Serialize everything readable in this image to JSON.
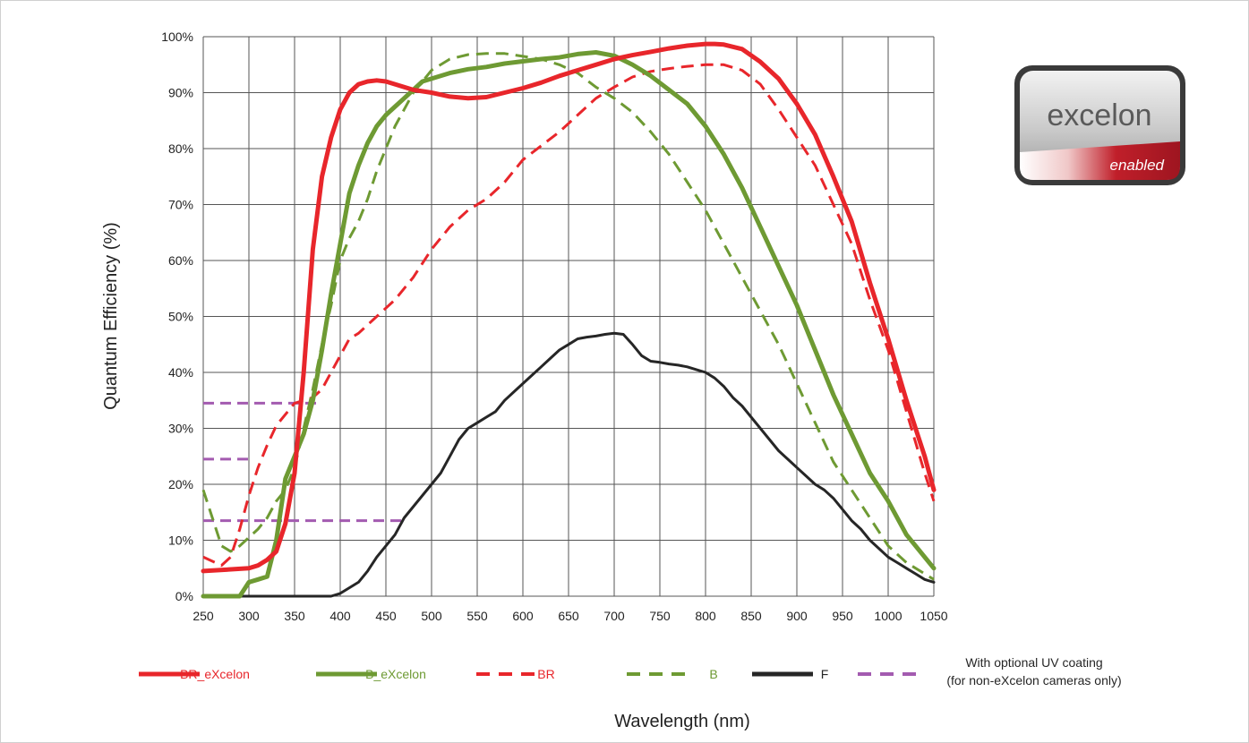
{
  "chart_data": {
    "type": "line",
    "xlabel": "Wavelength (nm)",
    "ylabel": "Quantum Efficiency (%)",
    "xlim": [
      250,
      1050
    ],
    "ylim": [
      0,
      100
    ],
    "x_ticks": [
      "250",
      "300",
      "350",
      "400",
      "450",
      "500",
      "550",
      "600",
      "650",
      "700",
      "750",
      "800",
      "850",
      "900",
      "950",
      "1000",
      "1050"
    ],
    "y_ticks": [
      "0%",
      "10%",
      "20%",
      "30%",
      "40%",
      "50%",
      "60%",
      "70%",
      "80%",
      "90%",
      "100%"
    ],
    "grid": true,
    "legend_position": "bottom",
    "colors": {
      "red": "#e8262b",
      "green": "#6e9a33",
      "black": "#262626",
      "purple": "#a35bb0"
    },
    "series": [
      {
        "name": "BR_eXcelon",
        "color": "#e8262b",
        "dash": false,
        "width": 5,
        "x": [
          250,
          300,
          310,
          320,
          330,
          340,
          350,
          360,
          370,
          380,
          390,
          400,
          410,
          420,
          430,
          440,
          450,
          460,
          470,
          480,
          500,
          520,
          540,
          560,
          580,
          600,
          620,
          640,
          660,
          680,
          700,
          720,
          740,
          760,
          780,
          800,
          810,
          820,
          840,
          860,
          880,
          900,
          920,
          940,
          960,
          980,
          1000,
          1020,
          1040,
          1050
        ],
        "y": [
          4.5,
          5,
          5.5,
          6.5,
          8,
          13,
          22,
          40,
          62,
          75,
          82,
          87,
          90,
          91.5,
          92,
          92.2,
          92,
          91.5,
          91,
          90.5,
          90,
          89.3,
          89,
          89.2,
          90,
          90.8,
          91.8,
          93,
          94,
          95,
          96,
          96.7,
          97.3,
          97.9,
          98.4,
          98.7,
          98.7,
          98.6,
          97.8,
          95.5,
          92.5,
          88,
          82.5,
          75,
          67,
          56,
          46,
          35,
          25,
          19
        ]
      },
      {
        "name": "B_eXcelon",
        "color": "#6e9a33",
        "dash": false,
        "width": 5,
        "x": [
          250,
          290,
          300,
          310,
          320,
          330,
          340,
          350,
          360,
          370,
          380,
          390,
          400,
          410,
          420,
          430,
          440,
          450,
          460,
          470,
          480,
          490,
          500,
          520,
          540,
          560,
          580,
          600,
          620,
          640,
          660,
          680,
          700,
          720,
          740,
          760,
          780,
          800,
          820,
          840,
          860,
          880,
          900,
          920,
          940,
          960,
          980,
          1000,
          1020,
          1040,
          1050
        ],
        "y": [
          0,
          0,
          2.5,
          3,
          3.5,
          10,
          21,
          25,
          29,
          35,
          44,
          54,
          63,
          72,
          77,
          81,
          84,
          86,
          87.5,
          89,
          90.5,
          92,
          92.5,
          93.5,
          94.2,
          94.6,
          95.2,
          95.6,
          96,
          96.3,
          96.9,
          97.2,
          96.6,
          95,
          93,
          90.5,
          88,
          84,
          79,
          73,
          66,
          59,
          52,
          44,
          36,
          29,
          22,
          17,
          11,
          7,
          5
        ]
      },
      {
        "name": "BR",
        "color": "#e8262b",
        "dash": true,
        "width": 3,
        "x": [
          250,
          270,
          280,
          290,
          300,
          310,
          320,
          330,
          340,
          350,
          360,
          370,
          380,
          390,
          400,
          410,
          420,
          440,
          460,
          480,
          500,
          520,
          540,
          560,
          580,
          600,
          620,
          640,
          660,
          680,
          700,
          720,
          740,
          760,
          780,
          800,
          820,
          840,
          860,
          880,
          900,
          920,
          940,
          960,
          980,
          1000,
          1020,
          1040,
          1050
        ],
        "y": [
          7,
          5.5,
          7,
          12,
          18,
          23,
          27,
          30.5,
          32.5,
          34.5,
          35,
          35.5,
          37,
          40,
          43,
          46,
          47,
          50,
          53,
          57,
          62,
          66,
          69,
          71,
          74,
          78,
          80.5,
          83,
          86,
          89,
          91,
          92.8,
          93.8,
          94.3,
          94.7,
          95,
          95,
          94,
          91.5,
          87,
          82,
          77,
          70,
          63,
          53,
          44,
          33,
          22,
          17
        ]
      },
      {
        "name": "B",
        "color": "#6e9a33",
        "dash": true,
        "width": 3,
        "x": [
          250,
          260,
          270,
          280,
          290,
          300,
          310,
          320,
          330,
          340,
          350,
          360,
          370,
          380,
          390,
          400,
          410,
          420,
          430,
          440,
          450,
          460,
          470,
          480,
          490,
          500,
          520,
          540,
          560,
          580,
          600,
          620,
          640,
          660,
          680,
          700,
          720,
          740,
          760,
          780,
          800,
          820,
          840,
          860,
          880,
          900,
          920,
          940,
          960,
          980,
          1000,
          1020,
          1040,
          1050
        ],
        "y": [
          19,
          14,
          9,
          8,
          9,
          10.5,
          12,
          14,
          17,
          19,
          23,
          30,
          37,
          45,
          52,
          60,
          64,
          67,
          71,
          76,
          80,
          84,
          87,
          90,
          92,
          94,
          96,
          96.8,
          97,
          97,
          96.5,
          96,
          95,
          93.5,
          91,
          89,
          86.5,
          83,
          79,
          74,
          69,
          63,
          57,
          51,
          45,
          38,
          31,
          24,
          19,
          14,
          9,
          6,
          4,
          3
        ]
      },
      {
        "name": "F",
        "color": "#262626",
        "dash": false,
        "width": 3,
        "x": [
          250,
          390,
          400,
          410,
          420,
          430,
          440,
          450,
          460,
          470,
          480,
          490,
          500,
          510,
          520,
          530,
          540,
          550,
          560,
          570,
          580,
          590,
          600,
          610,
          620,
          630,
          640,
          650,
          660,
          670,
          680,
          690,
          700,
          710,
          720,
          730,
          740,
          750,
          760,
          770,
          780,
          790,
          800,
          810,
          820,
          830,
          840,
          850,
          860,
          870,
          880,
          890,
          900,
          910,
          920,
          930,
          940,
          950,
          960,
          970,
          980,
          990,
          1000,
          1010,
          1020,
          1030,
          1040,
          1050
        ],
        "y": [
          0,
          0,
          0.5,
          1.5,
          2.5,
          4.5,
          7,
          9,
          11,
          14,
          16,
          18,
          20,
          22,
          25,
          28,
          30,
          31,
          32,
          33,
          35,
          36.5,
          38,
          39.5,
          41,
          42.5,
          44,
          45,
          46,
          46.3,
          46.5,
          46.8,
          47,
          46.8,
          45,
          43,
          42,
          41.8,
          41.5,
          41.3,
          41,
          40.5,
          40,
          39,
          37.5,
          35.5,
          34,
          32,
          30,
          28,
          26,
          24.5,
          23,
          21.5,
          20,
          19,
          17.5,
          15.5,
          13.5,
          12,
          10,
          8.5,
          7,
          6,
          5,
          4,
          3,
          2.5
        ]
      }
    ],
    "uv_coating_lines": [
      {
        "y": 34.5,
        "x": [
          250,
          375
        ]
      },
      {
        "y": 24.5,
        "x": [
          250,
          305
        ]
      },
      {
        "y": 13.5,
        "x": [
          250,
          470
        ]
      }
    ],
    "legend": [
      {
        "label": "BR_eXcelon",
        "color": "#e8262b",
        "dash": false,
        "text_color": "#e8262b"
      },
      {
        "label": "B_eXcelon",
        "color": "#6e9a33",
        "dash": false,
        "text_color": "#6e9a33"
      },
      {
        "label": "BR",
        "color": "#e8262b",
        "dash": true,
        "text_color": "#e8262b"
      },
      {
        "label": "B",
        "color": "#6e9a33",
        "dash": true,
        "text_color": "#6e9a33"
      },
      {
        "label": "F",
        "color": "#262626",
        "dash": false,
        "text_color": "#262626"
      },
      {
        "label": "With optional UV coating",
        "label2": "(for non-eXcelon cameras only)",
        "color": "#a35bb0",
        "dash": true,
        "text_color": "#262626"
      }
    ]
  },
  "badge": {
    "brand": "excelon",
    "caption": "enabled"
  }
}
